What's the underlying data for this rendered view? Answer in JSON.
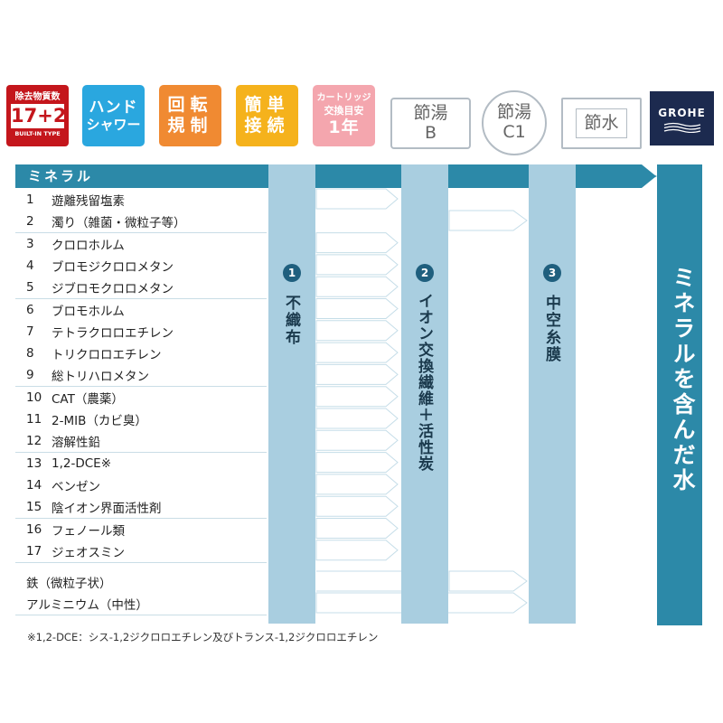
{
  "badges": {
    "b1": {
      "top": "除去物質数",
      "main": "17+2",
      "bottom": "BUILT-IN TYPE"
    },
    "b2": {
      "line1": "ハンド",
      "line2": "シャワー"
    },
    "b3": {
      "line1": "回転",
      "line2": "規制"
    },
    "b4": {
      "line1": "簡単",
      "line2": "接続"
    },
    "b5": {
      "line1": "カートリッジ",
      "line2": "交換目安",
      "line3": "1年"
    },
    "b6": {
      "line1": "節湯",
      "line2": "B"
    },
    "b7": {
      "line1": "節湯",
      "line2": "C1"
    },
    "b8": {
      "line1": "節水"
    },
    "logo": {
      "text": "GROHE"
    }
  },
  "colors": {
    "b1": "#c4161c",
    "b2": "#2aa7df",
    "b3": "#f08a32",
    "b4": "#f5b21c",
    "b5": "#f4a6ae",
    "header": "#2c89a8",
    "column": "#a9cee0",
    "final": "#2c89a8",
    "logo_bg": "#1c2a4f"
  },
  "table": {
    "header": "ミネラル",
    "items": [
      {
        "n": "1",
        "name": "遊離残留塩素"
      },
      {
        "n": "2",
        "name": "濁り（雑菌・微粒子等）"
      },
      {
        "n": "3",
        "name": "クロロホルム"
      },
      {
        "n": "4",
        "name": "ブロモジクロロメタン"
      },
      {
        "n": "5",
        "name": "ジブロモクロロメタン"
      },
      {
        "n": "6",
        "name": "ブロモホルム"
      },
      {
        "n": "7",
        "name": "テトラクロロエチレン"
      },
      {
        "n": "8",
        "name": "トリクロロエチレン"
      },
      {
        "n": "9",
        "name": "総トリハロメタン"
      },
      {
        "n": "10",
        "name": "CAT（農薬）"
      },
      {
        "n": "11",
        "name": "2-MIB（カビ臭）"
      },
      {
        "n": "12",
        "name": "溶解性鉛"
      },
      {
        "n": "13",
        "name": "1,2-DCE※"
      },
      {
        "n": "14",
        "name": "ベンゼン"
      },
      {
        "n": "15",
        "name": "陰イオン界面活性剤"
      },
      {
        "n": "16",
        "name": "フェノール類"
      },
      {
        "n": "17",
        "name": "ジェオスミン"
      }
    ],
    "extra": [
      {
        "name": "鉄（微粒子状）"
      },
      {
        "name": "アルミニウム（中性）"
      }
    ]
  },
  "filters": {
    "f1": {
      "num": "1",
      "label": "不織布"
    },
    "f2": {
      "num": "2",
      "label": "イオン交換繊維＋活性炭"
    },
    "f3": {
      "num": "3",
      "label": "中空糸膜"
    },
    "final": "ミネラルを含んだ水"
  },
  "footnote": "※1,2-DCE：シス-1,2ジクロロエチレン及びトランス-1,2ジクロロエチレン"
}
